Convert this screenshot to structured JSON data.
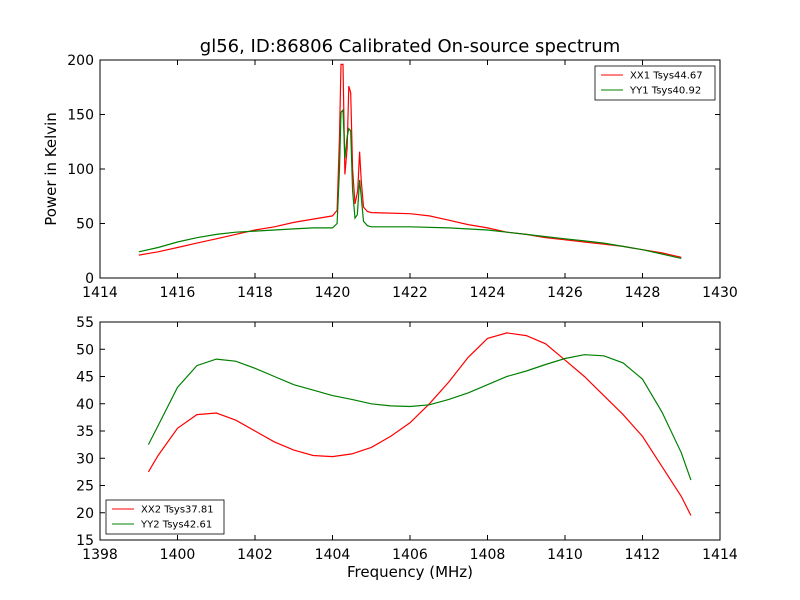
{
  "chart_data": [
    {
      "type": "line",
      "title": "gl56, ID:86806 Calibrated On-source spectrum",
      "xlabel": "",
      "ylabel": "Power in Kelvin",
      "xlim": [
        1414,
        1430
      ],
      "ylim": [
        0,
        200
      ],
      "xticks": [
        "1414",
        "1416",
        "1418",
        "1420",
        "1422",
        "1424",
        "1426",
        "1428",
        "1430"
      ],
      "yticks": [
        "0",
        "50",
        "100",
        "150",
        "200"
      ],
      "grid": false,
      "legend_position": "top-right",
      "series": [
        {
          "name": "XX1 Tsys44.67",
          "color": "#ff0000",
          "points": [
            [
              1415.0,
              21
            ],
            [
              1415.5,
              24
            ],
            [
              1416.0,
              28
            ],
            [
              1416.5,
              32
            ],
            [
              1417.0,
              36
            ],
            [
              1417.5,
              40
            ],
            [
              1418.0,
              44
            ],
            [
              1418.5,
              47
            ],
            [
              1419.0,
              51
            ],
            [
              1419.5,
              54
            ],
            [
              1420.0,
              57
            ],
            [
              1420.12,
              62
            ],
            [
              1420.18,
              130
            ],
            [
              1420.22,
              196
            ],
            [
              1420.27,
              196
            ],
            [
              1420.32,
              95
            ],
            [
              1420.38,
              120
            ],
            [
              1420.42,
              176
            ],
            [
              1420.47,
              170
            ],
            [
              1420.52,
              100
            ],
            [
              1420.58,
              68
            ],
            [
              1420.65,
              80
            ],
            [
              1420.7,
              116
            ],
            [
              1420.74,
              90
            ],
            [
              1420.8,
              65
            ],
            [
              1420.9,
              61
            ],
            [
              1421.0,
              60
            ],
            [
              1422.0,
              59
            ],
            [
              1422.5,
              57
            ],
            [
              1423.0,
              53
            ],
            [
              1423.5,
              49
            ],
            [
              1424.0,
              46
            ],
            [
              1424.5,
              42
            ],
            [
              1425.0,
              40
            ],
            [
              1425.5,
              37
            ],
            [
              1426.0,
              35
            ],
            [
              1426.5,
              33
            ],
            [
              1427.0,
              31
            ],
            [
              1427.5,
              29
            ],
            [
              1428.0,
              26
            ],
            [
              1428.5,
              23
            ],
            [
              1429.0,
              19
            ]
          ]
        },
        {
          "name": "YY1 Tsys40.92",
          "color": "#008000",
          "points": [
            [
              1415.0,
              24
            ],
            [
              1415.5,
              28
            ],
            [
              1416.0,
              33
            ],
            [
              1416.5,
              37
            ],
            [
              1417.0,
              40
            ],
            [
              1417.5,
              42
            ],
            [
              1418.0,
              43
            ],
            [
              1418.5,
              44
            ],
            [
              1419.0,
              45
            ],
            [
              1419.5,
              46
            ],
            [
              1420.0,
              46
            ],
            [
              1420.12,
              50
            ],
            [
              1420.18,
              100
            ],
            [
              1420.22,
              152
            ],
            [
              1420.27,
              154
            ],
            [
              1420.32,
              110
            ],
            [
              1420.38,
              130
            ],
            [
              1420.42,
              137
            ],
            [
              1420.47,
              135
            ],
            [
              1420.52,
              80
            ],
            [
              1420.58,
              55
            ],
            [
              1420.64,
              58
            ],
            [
              1420.7,
              90
            ],
            [
              1420.74,
              75
            ],
            [
              1420.8,
              52
            ],
            [
              1420.9,
              48
            ],
            [
              1421.0,
              47
            ],
            [
              1422.0,
              47
            ],
            [
              1423.0,
              46
            ],
            [
              1424.0,
              44
            ],
            [
              1424.5,
              42
            ],
            [
              1425.0,
              40
            ],
            [
              1425.5,
              38
            ],
            [
              1426.0,
              36
            ],
            [
              1426.5,
              34
            ],
            [
              1427.0,
              32
            ],
            [
              1427.5,
              29
            ],
            [
              1428.0,
              26
            ],
            [
              1428.5,
              22
            ],
            [
              1429.0,
              18
            ]
          ]
        }
      ]
    },
    {
      "type": "line",
      "title": "",
      "xlabel": "Frequency (MHz)",
      "ylabel": "",
      "xlim": [
        1398,
        1414
      ],
      "ylim": [
        15,
        55
      ],
      "xticks": [
        "1398",
        "1400",
        "1402",
        "1404",
        "1406",
        "1408",
        "1410",
        "1412",
        "1414"
      ],
      "yticks": [
        "15",
        "20",
        "25",
        "30",
        "35",
        "40",
        "45",
        "50",
        "55"
      ],
      "grid": false,
      "legend_position": "bottom-left",
      "series": [
        {
          "name": "XX2 Tsys37.81",
          "color": "#ff0000",
          "points": [
            [
              1399.25,
              27.5
            ],
            [
              1399.5,
              30.5
            ],
            [
              1400.0,
              35.5
            ],
            [
              1400.5,
              38.0
            ],
            [
              1401.0,
              38.3
            ],
            [
              1401.5,
              37.0
            ],
            [
              1402.0,
              35.0
            ],
            [
              1402.5,
              33.0
            ],
            [
              1403.0,
              31.5
            ],
            [
              1403.5,
              30.5
            ],
            [
              1404.0,
              30.3
            ],
            [
              1404.5,
              30.8
            ],
            [
              1405.0,
              32.0
            ],
            [
              1405.5,
              34.0
            ],
            [
              1406.0,
              36.5
            ],
            [
              1406.5,
              40.0
            ],
            [
              1407.0,
              44.0
            ],
            [
              1407.5,
              48.5
            ],
            [
              1408.0,
              52.0
            ],
            [
              1408.5,
              53.0
            ],
            [
              1409.0,
              52.5
            ],
            [
              1409.5,
              51.0
            ],
            [
              1410.0,
              48.0
            ],
            [
              1410.5,
              45.0
            ],
            [
              1411.0,
              41.5
            ],
            [
              1411.5,
              38.0
            ],
            [
              1412.0,
              34.0
            ],
            [
              1412.5,
              28.5
            ],
            [
              1413.0,
              23.0
            ],
            [
              1413.25,
              19.5
            ]
          ]
        },
        {
          "name": "YY2 Tsys42.61",
          "color": "#008000",
          "points": [
            [
              1399.25,
              32.5
            ],
            [
              1399.5,
              36.0
            ],
            [
              1400.0,
              43.0
            ],
            [
              1400.5,
              47.0
            ],
            [
              1401.0,
              48.2
            ],
            [
              1401.5,
              47.8
            ],
            [
              1402.0,
              46.5
            ],
            [
              1402.5,
              45.0
            ],
            [
              1403.0,
              43.5
            ],
            [
              1403.5,
              42.5
            ],
            [
              1404.0,
              41.5
            ],
            [
              1404.5,
              40.8
            ],
            [
              1405.0,
              40.0
            ],
            [
              1405.5,
              39.6
            ],
            [
              1406.0,
              39.5
            ],
            [
              1406.5,
              39.8
            ],
            [
              1407.0,
              40.8
            ],
            [
              1407.5,
              42.0
            ],
            [
              1408.0,
              43.5
            ],
            [
              1408.5,
              45.0
            ],
            [
              1409.0,
              46.0
            ],
            [
              1409.5,
              47.2
            ],
            [
              1410.0,
              48.3
            ],
            [
              1410.5,
              49.0
            ],
            [
              1411.0,
              48.8
            ],
            [
              1411.5,
              47.5
            ],
            [
              1412.0,
              44.5
            ],
            [
              1412.5,
              38.5
            ],
            [
              1413.0,
              31.0
            ],
            [
              1413.25,
              26.0
            ]
          ]
        }
      ]
    }
  ]
}
